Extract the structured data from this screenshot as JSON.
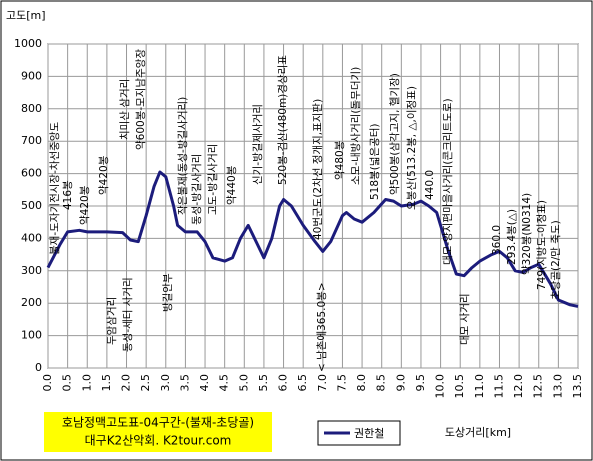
{
  "chart_data": {
    "type": "line",
    "title": "고도[m]",
    "x_label": "도상거리[km]",
    "footer": [
      "호남정맥고도표-04구간-(불재-초당골)",
      "대구K2산악회. K2tour.com"
    ],
    "x": [
      0.0,
      0.3,
      0.5,
      0.8,
      1.0,
      1.5,
      1.9,
      2.1,
      2.3,
      2.5,
      2.7,
      2.85,
      3.0,
      3.2,
      3.3,
      3.5,
      3.8,
      4.0,
      4.2,
      4.5,
      4.7,
      4.9,
      5.1,
      5.3,
      5.5,
      5.7,
      5.9,
      6.0,
      6.2,
      6.5,
      6.8,
      7.0,
      7.2,
      7.5,
      7.6,
      7.8,
      8.0,
      8.3,
      8.6,
      8.8,
      9.0,
      9.3,
      9.5,
      9.7,
      9.9,
      10.0,
      10.2,
      10.4,
      10.6,
      10.8,
      11.0,
      11.3,
      11.5,
      11.7,
      11.9,
      12.1,
      12.3,
      12.5,
      12.6,
      12.8,
      13.0,
      13.3,
      13.5
    ],
    "series": [
      {
        "name": "권한철",
        "color": "#1c1c7c",
        "values": [
          310,
          380,
          420,
          425,
          420,
          420,
          418,
          395,
          390,
          470,
          560,
          605,
          590,
          500,
          440,
          420,
          420,
          390,
          340,
          330,
          340,
          400,
          440,
          390,
          340,
          400,
          500,
          520,
          500,
          440,
          390,
          360,
          390,
          470,
          480,
          460,
          450,
          480,
          520,
          515,
          500,
          505,
          515,
          500,
          480,
          440,
          360,
          290,
          285,
          310,
          330,
          350,
          360,
          340,
          300,
          295,
          310,
          320,
          300,
          260,
          210,
          195,
          190
        ]
      }
    ],
    "xlim": [
      0,
      13.5
    ],
    "ylim": [
      0,
      1000
    ],
    "yticks": [
      0,
      100,
      200,
      300,
      400,
      500,
      600,
      700,
      800,
      900,
      1000
    ],
    "xticks": [
      {
        "value": 0,
        "label": "0.0"
      },
      0.5,
      {
        "value": 1,
        "label": "1.0"
      },
      1.5,
      {
        "value": 2,
        "label": "2.0"
      },
      2.5,
      {
        "value": 3,
        "label": "3.0"
      },
      3.5,
      {
        "value": 4,
        "label": "4.0"
      },
      4.5,
      {
        "value": 5,
        "label": "5.0"
      },
      5.5,
      {
        "value": 6,
        "label": "6.0"
      },
      6.5,
      {
        "value": 7,
        "label": "7.0"
      },
      7.5,
      {
        "value": 8,
        "label": "8.0"
      },
      8.5,
      {
        "value": 9,
        "label": "9.0"
      },
      9.5,
      {
        "value": 10,
        "label": "10.0"
      },
      10.5,
      {
        "value": 11,
        "label": "11.0"
      },
      11.5,
      {
        "value": 12,
        "label": "12.0"
      },
      12.5,
      {
        "value": 13,
        "label": "13.0"
      },
      13.5
    ],
    "grid": true,
    "annotations": [
      "불재-도자기전시장-차선중앙도",
      "416봉",
      "약420봉",
      "약420봉",
      "치미산 삼거리",
      "약600봉-모지남주앙장",
      "작은불재(동성-방길사거리)",
      "동성-방길사거리",
      "고도-방길사거리",
      "약440봉",
      "신기-방길제사거리",
      "520봉-검산(480m)경상리표",
      "40번군도(2차선 정개지,표지판)",
      "약480봉",
      "소모-내방사거리(돌무더기)",
      "518봉(넓은공터)",
      "약500봉(삼각고지, 헬기장)",
      "오봉산(513.2봉, △,이정표)",
      "440.0",
      "대모-양지편마을사거리(콘크리트도로)",
      "360.0",
      "293.4봉(△)",
      "약320봉(N0314)",
      "749(지방도-이정표)",
      "초당골(2/만 죽도)",
      "두암삼거리",
      "동성-세터 사거리",
      "방길안부",
      "< 남촌에365.0봉>",
      "대모 사거리"
    ]
  }
}
